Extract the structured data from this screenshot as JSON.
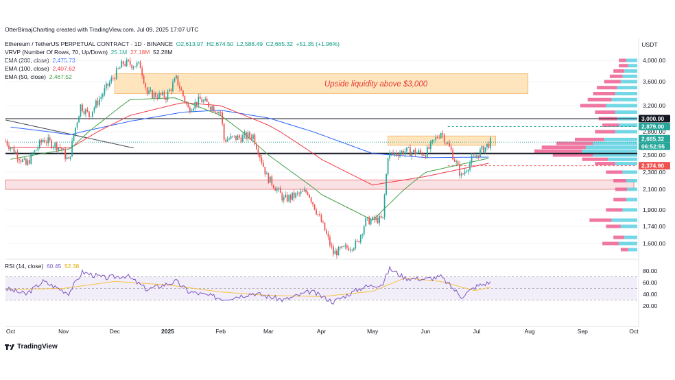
{
  "attribution": "OtterBiraajCharting created with TradingView.com, Jul 09, 2025 17:07 UTC",
  "legend": {
    "symbol": "Ethereum / TetherUS PERPETUAL CONTRACT · 1D · BINANCE",
    "open": "O2,613.97",
    "high": "H2,674.50",
    "low": "L2,588.49",
    "close": "C2,665.32",
    "change": "+51.35 (+1.96%)",
    "vrvp_label": "VRVP (Number Of Rows, 70, Up/Down)",
    "vrvp_up": "25.1M",
    "vrvp_down": "27.18M",
    "vrvp_total": "52.28M",
    "ema200_label": "EMA (200, close)",
    "ema200_value": "2,475.73",
    "ema100_label": "EMA (100, close)",
    "ema100_value": "2,407.62",
    "ema50_label": "EMA (50, close)",
    "ema50_value": "2,467.52",
    "rsi_label": "RSI (14, close)",
    "rsi_value": "60.45",
    "rsi_ma_value": "52.38"
  },
  "brand_name": "TradingView",
  "colors": {
    "up": "#26a69a",
    "down": "#ef5350",
    "ema200": "#2962ff",
    "ema100": "#f23645",
    "ema50": "#43a047",
    "rsi": "#7e57c2",
    "rsi_ma": "#f5c242",
    "zone": "#ffe0b2",
    "support_zone": "#f8d7da"
  },
  "chart_data": {
    "type": "candlestick",
    "currency": "USDT",
    "price_ticks": [
      "4,000.00",
      "3,600.00",
      "3,200.00",
      "2,800.00",
      "2,500.00",
      "2,300.00",
      "2,100.00",
      "1,900.00",
      "1,740.00",
      "1,600.00"
    ],
    "price_tick_values": [
      4000,
      3600,
      3200,
      2800,
      2500,
      2300,
      2100,
      1900,
      1740,
      1600
    ],
    "time_ticks": [
      "Oct",
      "Nov",
      "Dec",
      "2025",
      "Feb",
      "Mar",
      "Apr",
      "May",
      "Jun",
      "Jul",
      "Aug",
      "Sep",
      "Oct"
    ],
    "rsi_ticks": [
      "80.00",
      "60.00",
      "40.00",
      "20.00"
    ],
    "rsi_tick_values": [
      80,
      60,
      40,
      20
    ],
    "annotation": "Upside liquidity above $3,000",
    "price_labels": [
      {
        "text": "3,000.00",
        "value": 3000,
        "kind": "level"
      },
      {
        "text": "2,879.00",
        "value": 2879,
        "kind": "green"
      },
      {
        "text": "2,665.32",
        "value": 2665.32,
        "kind": "last"
      },
      {
        "text": "06:52:55",
        "value": 2665.32,
        "kind": "timer"
      },
      {
        "text": "2,374.90",
        "value": 2374.9,
        "kind": "red"
      }
    ],
    "levels": {
      "resistance": 3000,
      "pivot": 2520,
      "upper_dash": 2879,
      "lower_dash": 2374.9,
      "last": 2665.32
    },
    "zones": [
      {
        "name": "upside-liquidity",
        "from": "2024-12-01",
        "to": "2025-07-31",
        "low": 3400,
        "high": 3750
      },
      {
        "name": "range-top",
        "from": "2025-05-10",
        "to": "2025-07-12",
        "low": 2625,
        "high": 2745
      },
      {
        "name": "demand",
        "from": "2024-09-28",
        "to": "2025-10-01",
        "low": 2100,
        "high": 2210
      }
    ],
    "trendline": {
      "from": [
        "2024-09-28",
        2980
      ],
      "to": [
        "2024-12-12",
        2590
      ]
    },
    "ohlc_waypoints": [
      [
        "2024-09-28",
        2680
      ],
      [
        "2024-10-10",
        2380
      ],
      [
        "2024-10-20",
        2700
      ],
      [
        "2024-10-30",
        2600
      ],
      [
        "2024-11-04",
        2420
      ],
      [
        "2024-11-11",
        3200
      ],
      [
        "2024-11-16",
        3050
      ],
      [
        "2024-11-24",
        3400
      ],
      [
        "2024-12-06",
        3950
      ],
      [
        "2024-12-16",
        3900
      ],
      [
        "2024-12-20",
        3400
      ],
      [
        "2024-12-31",
        3350
      ],
      [
        "2025-01-06",
        3650
      ],
      [
        "2025-01-13",
        3150
      ],
      [
        "2025-01-20",
        3300
      ],
      [
        "2025-02-01",
        3100
      ],
      [
        "2025-02-03",
        2700
      ],
      [
        "2025-02-20",
        2750
      ],
      [
        "2025-02-28",
        2250
      ],
      [
        "2025-03-10",
        2000
      ],
      [
        "2025-03-24",
        2080
      ],
      [
        "2025-04-08",
        1520
      ],
      [
        "2025-04-22",
        1600
      ],
      [
        "2025-04-27",
        1790
      ],
      [
        "2025-05-07",
        1810
      ],
      [
        "2025-05-10",
        2500
      ],
      [
        "2025-05-20",
        2550
      ],
      [
        "2025-06-01",
        2520
      ],
      [
        "2025-06-10",
        2800
      ],
      [
        "2025-06-16",
        2550
      ],
      [
        "2025-06-22",
        2250
      ],
      [
        "2025-06-28",
        2440
      ],
      [
        "2025-07-05",
        2580
      ],
      [
        "2025-07-09",
        2665
      ]
    ],
    "ema50_waypoints": [
      [
        "2024-10-01",
        2450
      ],
      [
        "2024-11-05",
        2580
      ],
      [
        "2024-12-10",
        3300
      ],
      [
        "2025-01-05",
        3330
      ],
      [
        "2025-02-01",
        3050
      ],
      [
        "2025-03-01",
        2500
      ],
      [
        "2025-04-01",
        2050
      ],
      [
        "2025-05-01",
        1800
      ],
      [
        "2025-06-01",
        2300
      ],
      [
        "2025-07-09",
        2467
      ]
    ],
    "ema100_waypoints": [
      [
        "2024-10-01",
        2600
      ],
      [
        "2024-11-05",
        2590
      ],
      [
        "2024-12-10",
        3050
      ],
      [
        "2025-01-10",
        3250
      ],
      [
        "2025-02-01",
        3200
      ],
      [
        "2025-03-01",
        2900
      ],
      [
        "2025-04-01",
        2450
      ],
      [
        "2025-05-01",
        2150
      ],
      [
        "2025-06-01",
        2250
      ],
      [
        "2025-07-09",
        2408
      ]
    ],
    "ema200_waypoints": [
      [
        "2024-10-01",
        2870
      ],
      [
        "2024-11-05",
        2760
      ],
      [
        "2024-12-10",
        2960
      ],
      [
        "2025-01-10",
        3100
      ],
      [
        "2025-02-01",
        3130
      ],
      [
        "2025-03-01",
        3010
      ],
      [
        "2025-04-01",
        2760
      ],
      [
        "2025-05-01",
        2520
      ],
      [
        "2025-06-01",
        2470
      ],
      [
        "2025-07-09",
        2476
      ]
    ],
    "rsi_waypoints": [
      [
        "2024-09-28",
        50
      ],
      [
        "2024-10-10",
        40
      ],
      [
        "2024-10-20",
        62
      ],
      [
        "2024-11-04",
        42
      ],
      [
        "2024-11-12",
        78
      ],
      [
        "2024-11-25",
        68
      ],
      [
        "2024-12-08",
        72
      ],
      [
        "2024-12-20",
        48
      ],
      [
        "2025-01-06",
        62
      ],
      [
        "2025-01-13",
        45
      ],
      [
        "2025-02-03",
        32
      ],
      [
        "2025-02-20",
        42
      ],
      [
        "2025-03-10",
        30
      ],
      [
        "2025-03-26",
        45
      ],
      [
        "2025-04-08",
        27
      ],
      [
        "2025-04-25",
        52
      ],
      [
        "2025-05-07",
        58
      ],
      [
        "2025-05-11",
        84
      ],
      [
        "2025-05-20",
        68
      ],
      [
        "2025-06-01",
        66
      ],
      [
        "2025-06-10",
        70
      ],
      [
        "2025-06-22",
        36
      ],
      [
        "2025-07-01",
        54
      ],
      [
        "2025-07-09",
        60.5
      ]
    ],
    "rsi_ma_waypoints": [
      [
        "2024-09-28",
        48
      ],
      [
        "2024-11-01",
        50
      ],
      [
        "2024-12-01",
        62
      ],
      [
        "2025-01-01",
        56
      ],
      [
        "2025-02-01",
        44
      ],
      [
        "2025-03-01",
        38
      ],
      [
        "2025-04-01",
        36
      ],
      [
        "2025-05-01",
        45
      ],
      [
        "2025-05-20",
        68
      ],
      [
        "2025-06-10",
        62
      ],
      [
        "2025-06-30",
        46
      ],
      [
        "2025-07-09",
        52.4
      ]
    ],
    "volume_profile": [
      {
        "price": 4000,
        "up": 30,
        "down": 20
      },
      {
        "price": 3900,
        "up": 25,
        "down": 25
      },
      {
        "price": 3800,
        "up": 35,
        "down": 30
      },
      {
        "price": 3700,
        "up": 40,
        "down": 35
      },
      {
        "price": 3600,
        "up": 45,
        "down": 45
      },
      {
        "price": 3500,
        "up": 55,
        "down": 55
      },
      {
        "price": 3400,
        "up": 60,
        "down": 60
      },
      {
        "price": 3300,
        "up": 70,
        "down": 65
      },
      {
        "price": 3200,
        "up": 85,
        "down": 70
      },
      {
        "price": 3100,
        "up": 60,
        "down": 55
      },
      {
        "price": 3000,
        "up": 55,
        "down": 50
      },
      {
        "price": 2900,
        "up": 50,
        "down": 45
      },
      {
        "price": 2800,
        "up": 60,
        "down": 55
      },
      {
        "price": 2700,
        "up": 90,
        "down": 80
      },
      {
        "price": 2650,
        "up": 120,
        "down": 100
      },
      {
        "price": 2600,
        "up": 140,
        "down": 120
      },
      {
        "price": 2550,
        "up": 150,
        "down": 130
      },
      {
        "price": 2500,
        "up": 120,
        "down": 110
      },
      {
        "price": 2450,
        "up": 80,
        "down": 70
      },
      {
        "price": 2400,
        "up": 60,
        "down": 55
      },
      {
        "price": 2300,
        "up": 40,
        "down": 45
      },
      {
        "price": 2200,
        "up": 30,
        "down": 35
      },
      {
        "price": 2100,
        "up": 28,
        "down": 32
      },
      {
        "price": 2000,
        "up": 30,
        "down": 35
      },
      {
        "price": 1900,
        "up": 40,
        "down": 45
      },
      {
        "price": 1800,
        "up": 70,
        "down": 60
      },
      {
        "price": 1740,
        "up": 45,
        "down": 40
      },
      {
        "price": 1650,
        "up": 35,
        "down": 30
      },
      {
        "price": 1600,
        "up": 50,
        "down": 45
      },
      {
        "price": 1550,
        "up": 25,
        "down": 20
      }
    ]
  }
}
